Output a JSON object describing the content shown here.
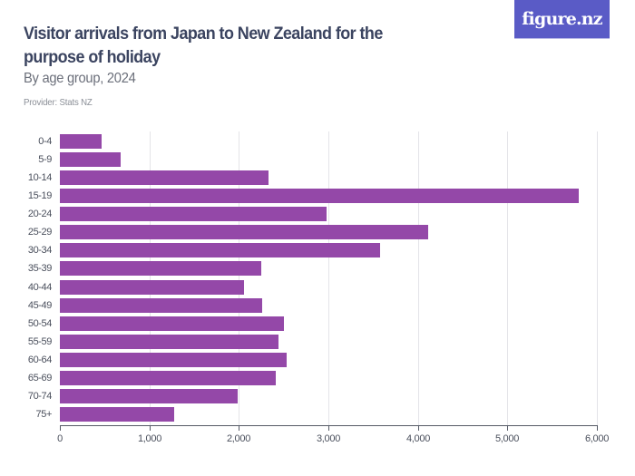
{
  "header": {
    "title": "Visitor arrivals from Japan to New Zealand for the purpose of holiday",
    "subtitle": "By age group, 2024",
    "provider": "Provider: Stats NZ",
    "logo_text": "figure.nz"
  },
  "colors": {
    "bar": "#9448a8",
    "title": "#3b4460",
    "logo_bg": "#5a5bc6"
  },
  "chart_data": {
    "type": "bar",
    "orientation": "horizontal",
    "title": "Visitor arrivals from Japan to New Zealand for the purpose of holiday",
    "subtitle": "By age group, 2024",
    "xlabel": "",
    "ylabel": "",
    "xlim": [
      0,
      6000
    ],
    "x_ticks": [
      0,
      1000,
      2000,
      3000,
      4000,
      5000,
      6000
    ],
    "x_tick_labels": [
      "0",
      "1,000",
      "2,000",
      "3,000",
      "4,000",
      "5,000",
      "6,000"
    ],
    "grid": true,
    "legend": null,
    "categories": [
      "0-4",
      "5-9",
      "10-14",
      "15-19",
      "20-24",
      "25-29",
      "30-34",
      "35-39",
      "40-44",
      "45-49",
      "50-54",
      "55-59",
      "60-64",
      "65-69",
      "70-74",
      "75+"
    ],
    "values": [
      466,
      679,
      2331,
      5797,
      2980,
      4115,
      3578,
      2250,
      2057,
      2260,
      2503,
      2442,
      2534,
      2412,
      1986,
      1277
    ]
  }
}
